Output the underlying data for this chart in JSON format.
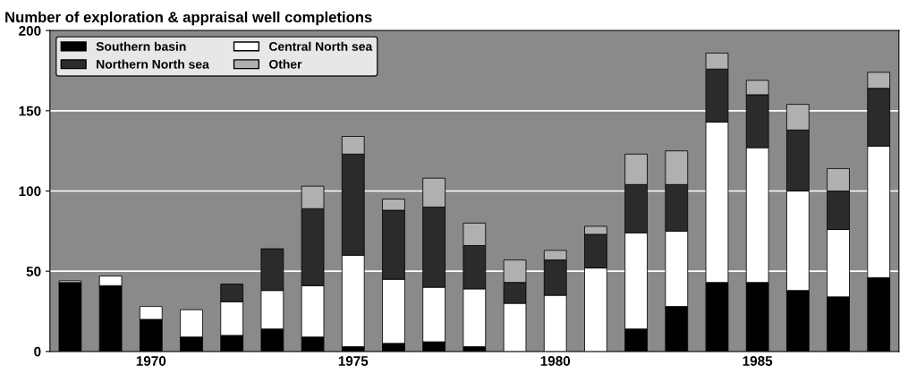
{
  "chart_data": {
    "type": "bar",
    "title": "Number of exploration & appraisal well completions",
    "stacked": true,
    "categories": [
      null,
      null,
      "1970",
      null,
      null,
      null,
      null,
      "1975",
      null,
      null,
      null,
      null,
      "1980",
      null,
      null,
      null,
      null,
      "1985",
      null,
      null,
      null
    ],
    "series": [
      {
        "name": "Southern basin",
        "color": "#000000",
        "values": [
          43,
          41,
          20,
          9,
          10,
          14,
          9,
          3,
          5,
          6,
          3,
          0,
          0,
          0,
          14,
          28,
          43,
          43,
          38,
          34,
          46
        ]
      },
      {
        "name": "Central North sea",
        "color": "#ffffff",
        "values": [
          1,
          6,
          8,
          17,
          21,
          24,
          32,
          57,
          40,
          34,
          36,
          30,
          35,
          52,
          60,
          47,
          100,
          84,
          62,
          42,
          82
        ]
      },
      {
        "name": "Northern North sea",
        "color": "#2b2b2b",
        "values": [
          0,
          0,
          0,
          0,
          11,
          26,
          48,
          63,
          43,
          50,
          27,
          13,
          22,
          21,
          30,
          29,
          33,
          33,
          38,
          24,
          36
        ]
      },
      {
        "name": "Other",
        "color": "#b0b0b0",
        "values": [
          0,
          0,
          0,
          0,
          0,
          0,
          14,
          11,
          7,
          18,
          14,
          14,
          6,
          5,
          19,
          21,
          10,
          9,
          16,
          14,
          10
        ]
      }
    ],
    "ylim": [
      0,
      200
    ],
    "yticks": [
      0,
      50,
      100,
      150,
      200
    ],
    "grid": "y",
    "legend": "top left"
  }
}
